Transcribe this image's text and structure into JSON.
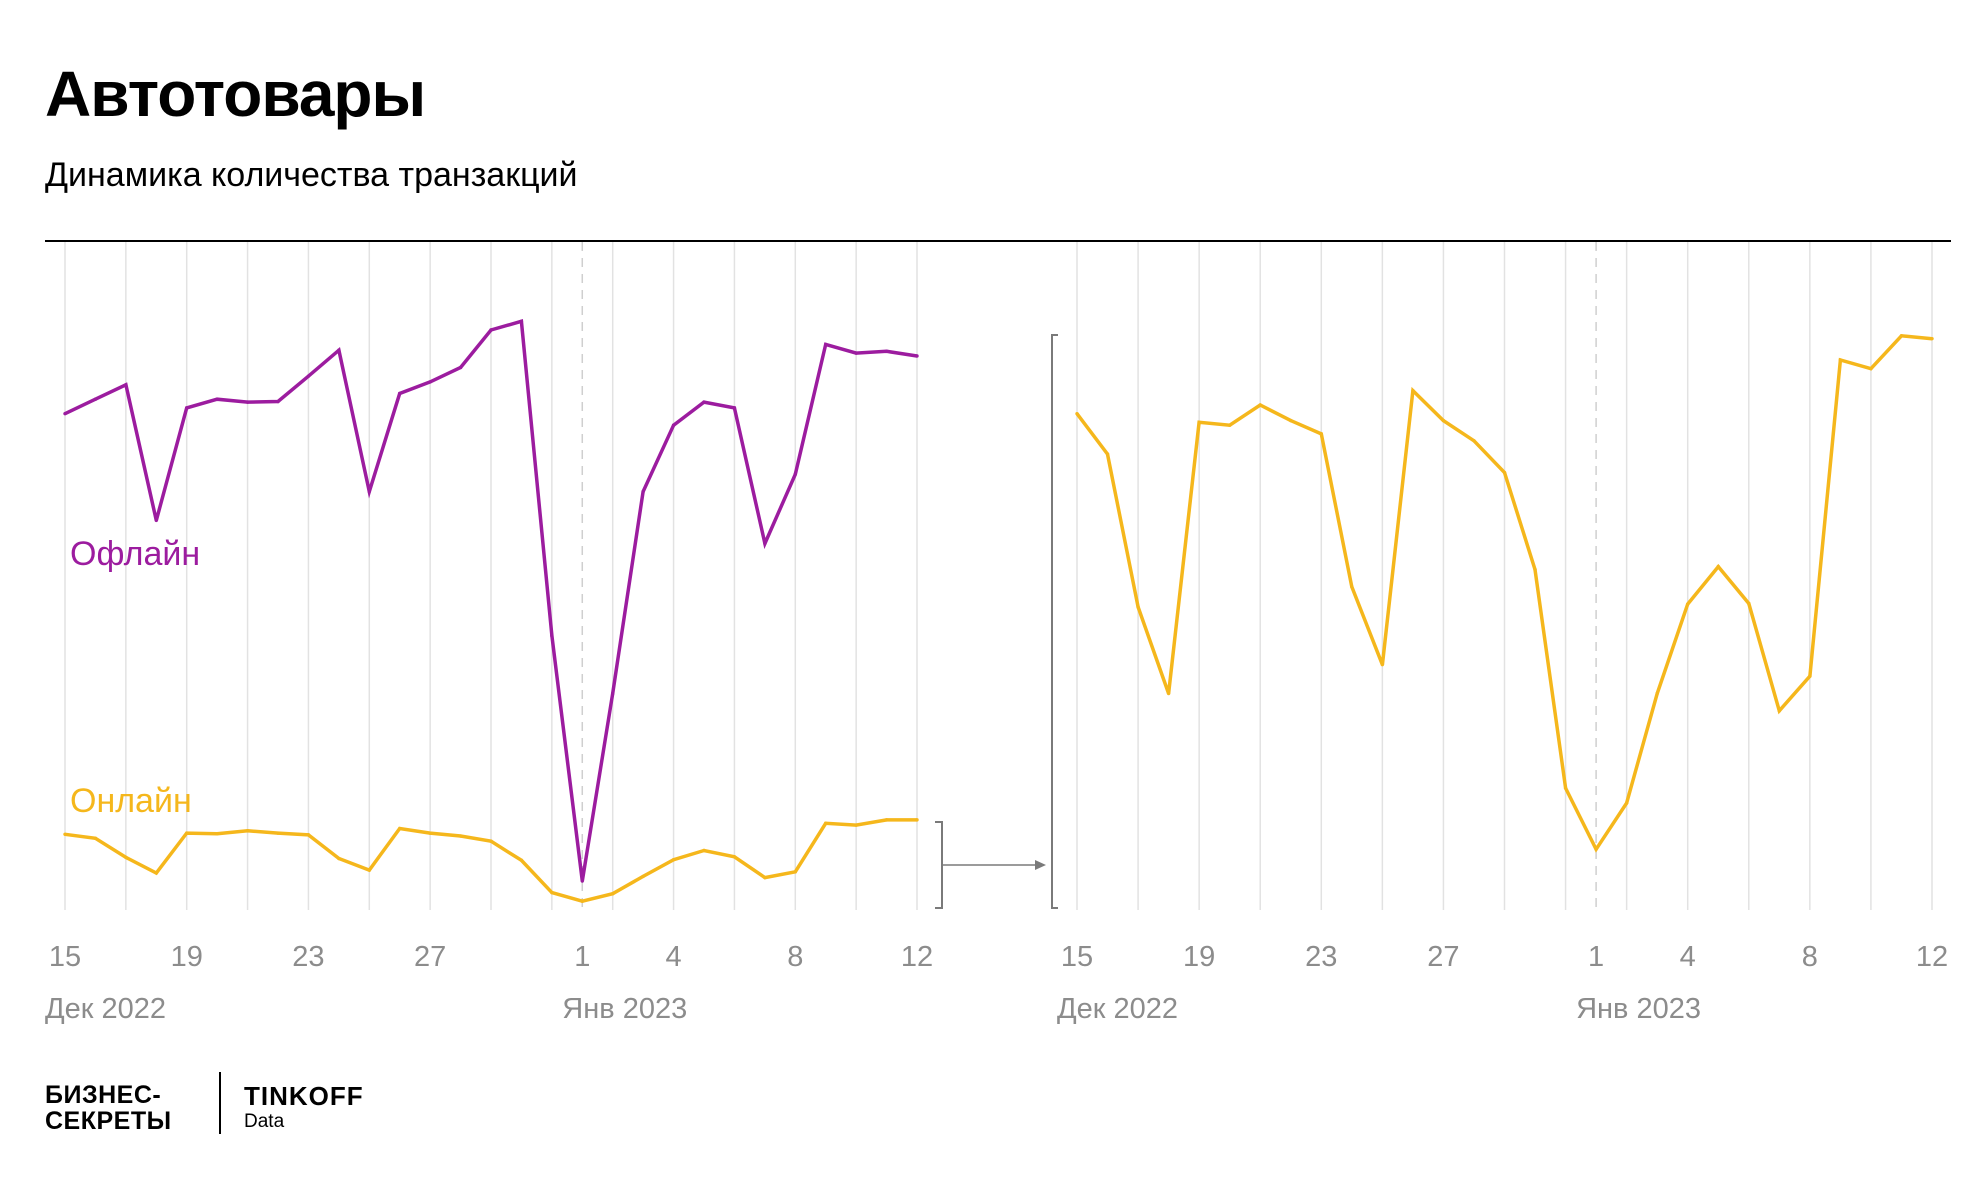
{
  "title": "Автотовары",
  "subtitle": "Динамика количества транзакций",
  "colors": {
    "offline": "#9c1c9f",
    "online": "#f5b71c",
    "grid": "#e2e2e2",
    "tick": "#8c8c8c",
    "bracket": "#7a7a7a"
  },
  "chart_data": [
    {
      "type": "line",
      "title": "",
      "x": [
        "15 Дек",
        "16 Дек",
        "17 Дек",
        "18 Дек",
        "19 Дек",
        "20 Дек",
        "21 Дек",
        "22 Дек",
        "23 Дек",
        "24 Дек",
        "25 Дек",
        "26 Дек",
        "27 Дек",
        "28 Дек",
        "29 Дек",
        "30 Дек",
        "31 Дек",
        "1 Янв",
        "2 Янв",
        "3 Янв",
        "4 Янв",
        "5 Янв",
        "6 Янв",
        "7 Янв",
        "8 Янв",
        "9 Янв",
        "10 Янв",
        "11 Янв",
        "12 Янв"
      ],
      "tick_labels": [
        "15",
        "19",
        "23",
        "27",
        "1",
        "4",
        "8",
        "12"
      ],
      "month_labels": [
        "Дек 2022",
        "Янв 2023"
      ],
      "y_axis": "none",
      "ylim": [
        0,
        100
      ],
      "grid": "vertical",
      "series": [
        {
          "name": "Офлайн",
          "color": "#9c1c9f",
          "values": [
            85.5,
            88,
            90.5,
            67,
            86.5,
            88,
            87.5,
            87.6,
            92,
            96.5,
            72,
            89,
            91,
            93.5,
            100,
            101.5,
            47,
            4.5,
            37,
            72,
            83.5,
            87.5,
            86.5,
            63,
            75,
            97.5,
            96,
            96.3,
            95.5
          ]
        },
        {
          "name": "Онлайн",
          "color": "#f5b71c",
          "values": [
            12.6,
            11.9,
            8.6,
            5.9,
            12.8,
            12.7,
            13.2,
            12.8,
            12.5,
            8.4,
            6.4,
            13.6,
            12.8,
            12.3,
            11.4,
            8.1,
            2.5,
            1,
            2.3,
            5.3,
            8.2,
            9.8,
            8.7,
            5.1,
            6.1,
            14.5,
            14.2,
            15.1,
            15.1
          ]
        }
      ]
    },
    {
      "type": "line",
      "title": "",
      "x": [
        "15 Дек",
        "16 Дек",
        "17 Дек",
        "18 Дек",
        "19 Дек",
        "20 Дек",
        "21 Дек",
        "22 Дек",
        "23 Дек",
        "24 Дек",
        "25 Дек",
        "26 Дек",
        "27 Дек",
        "28 Дек",
        "29 Дек",
        "30 Дек",
        "31 Дек",
        "1 Янв",
        "2 Янв",
        "3 Янв",
        "4 Янв",
        "5 Янв",
        "6 Янв",
        "7 Янв",
        "8 Янв",
        "9 Янв",
        "10 Янв",
        "11 Янв",
        "12 Янв"
      ],
      "tick_labels": [
        "15",
        "19",
        "23",
        "27",
        "1",
        "4",
        "8",
        "12"
      ],
      "month_labels": [
        "Дек 2022",
        "Янв 2023"
      ],
      "y_axis": "none",
      "ylim": [
        0,
        100
      ],
      "grid": "vertical",
      "series": [
        {
          "name": "Онлайн",
          "color": "#f5b71c",
          "values": [
            85.5,
            78.5,
            52,
            37,
            84,
            83.5,
            87,
            84.3,
            82,
            55.5,
            42,
            89.5,
            84.3,
            80.8,
            75.3,
            58.5,
            20.6,
            10,
            18,
            37,
            52.5,
            59,
            52.6,
            34,
            40,
            94.8,
            93.3,
            99,
            98.5
          ]
        }
      ]
    }
  ],
  "logo": {
    "left_line1": "БИЗНЕС-",
    "left_line2": "СЕКРЕТЫ",
    "right_brand": "TINKOFF",
    "right_sub": "Data"
  }
}
